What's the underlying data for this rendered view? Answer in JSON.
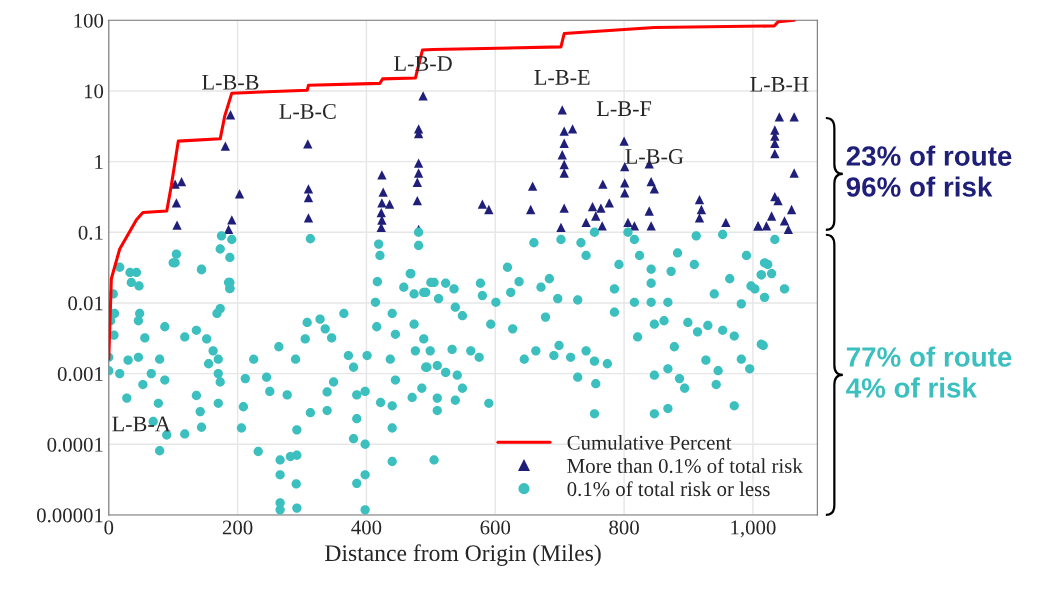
{
  "chart_data": {
    "type": "scatter",
    "xlabel": "Distance from Origin (Miles)",
    "xlim": [
      0,
      1100
    ],
    "xticks": [
      0,
      200,
      400,
      600,
      800,
      {
        "value": 1000,
        "label": "1,000"
      }
    ],
    "ylim": [
      1e-05,
      100
    ],
    "log": "y",
    "yticks": [
      {
        "value": 1e-05,
        "label": "0.00001"
      },
      {
        "value": 0.0001,
        "label": "0.0001"
      },
      {
        "value": 0.001,
        "label": "0.001"
      },
      {
        "value": 0.01,
        "label": "0.01"
      },
      {
        "value": 0.1,
        "label": "0.1"
      },
      {
        "value": 1,
        "label": "1"
      },
      {
        "value": 10,
        "label": "10"
      },
      {
        "value": 100,
        "label": "100"
      }
    ],
    "grid": true,
    "legend": "bottom right",
    "series": [
      {
        "name": "Cumulative Percent",
        "type": "line",
        "color": "#ff0000",
        "marker": "none",
        "line_style": "solid",
        "x": [
          0,
          4,
          17,
          43,
          53,
          90,
          97,
          108,
          173,
          180,
          191,
          308,
          310,
          421,
          425,
          476,
          487,
          503,
          702,
          707,
          847,
          1028,
          1033,
          1039,
          1064
        ],
        "values": [
          0.0016,
          0.022,
          0.058,
          0.15,
          0.19,
          0.2,
          0.45,
          1.95,
          2.1,
          4.4,
          9.3,
          10.2,
          12,
          12.8,
          14.8,
          15.2,
          38,
          38.5,
          42,
          65,
          79,
          83,
          83,
          95,
          100
        ]
      },
      {
        "name": "More than 0.1% of total risk",
        "color": "#1f1f7a",
        "marker": "triangle",
        "x": [
          103,
          113,
          105,
          106,
          181,
          189,
          203,
          191,
          186,
          309,
          310,
          310,
          310,
          424,
          426,
          424,
          436,
          423,
          424,
          423,
          488,
          481,
          481,
          481,
          481,
          479,
          479,
          481,
          580,
          590,
          658,
          655,
          704,
          707,
          720,
          707,
          704,
          707,
          707,
          707,
          702,
          767,
          751,
          777,
          764,
          741,
          756,
          766,
          800,
          801,
          801,
          801,
          806,
          816,
          839,
          842,
          847,
          839,
          842,
          917,
          920,
          917,
          958,
          1008,
          1041,
          1064,
          1034,
          1034,
          1034,
          1034,
          1064,
          1034,
          1039,
          1060,
          1029,
          1008,
          1021,
          1049,
          1055
        ],
        "values": [
          0.48,
          0.52,
          0.26,
          0.126,
          1.66,
          4.6,
          0.35,
          0.15,
          0.11,
          1.78,
          0.41,
          0.31,
          0.16,
          0.65,
          0.37,
          0.26,
          0.25,
          0.19,
          0.149,
          0.117,
          8.5,
          2.9,
          2.5,
          0.95,
          0.69,
          0.51,
          0.28,
          0.11,
          0.25,
          0.21,
          0.45,
          0.21,
          5.4,
          2.7,
          2.9,
          1.82,
          1.25,
          0.91,
          0.69,
          0.22,
          0.117,
          0.48,
          0.23,
          0.26,
          0.22,
          0.138,
          0.17,
          0.123,
          1.95,
          0.85,
          0.5,
          0.36,
          0.138,
          0.123,
          0.93,
          0.52,
          0.41,
          0.2,
          0.123,
          0.29,
          0.21,
          0.16,
          0.138,
          0.123,
          4.3,
          4.3,
          2.8,
          2.3,
          1.82,
          1.3,
          0.69,
          0.32,
          0.28,
          0.21,
          0.17,
          0.123,
          0.123,
          0.145,
          0.11
        ]
      },
      {
        "name": "0.1% of total risk or less",
        "color": "#3cbfbf",
        "marker": "circle",
        "x": [
          3,
          7,
          9,
          8,
          0,
          0,
          17,
          33,
          43,
          35,
          47,
          48,
          46,
          56,
          17,
          30,
          46,
          28,
          53,
          66,
          79,
          87,
          77,
          69,
          90,
          79,
          87,
          103,
          118,
          118,
          136,
          144,
          152,
          162,
          170,
          155,
          170,
          173,
          170,
          136,
          142,
          144,
          168,
          173,
          186,
          188,
          209,
          206,
          212,
          225,
          245,
          250,
          232,
          264,
          277,
          266,
          266,
          282,
          292,
          291,
          266,
          266,
          292,
          292,
          290,
          308,
          305,
          313,
          328,
          336,
          346,
          339,
          339,
          349,
          365,
          372,
          380,
          385,
          385,
          380,
          398,
          401,
          398,
          398,
          385,
          398,
          414,
          417,
          416,
          422,
          440,
          445,
          437,
          445,
          440,
          440,
          440,
          458,
          469,
          474,
          474,
          476,
          486,
          471,
          489,
          500,
          494,
          505,
          505,
          492,
          512,
          523,
          536,
          538,
          549,
          577,
          580,
          593,
          601,
          619,
          624,
          627,
          637,
          671,
          684,
          697,
          678,
          728,
          489,
          499,
          533,
          562,
          575,
          492,
          510,
          523,
          541,
          510,
          510,
          538,
          549,
          590,
          645,
          663,
          691,
          717,
          699,
          741,
          754,
          774,
          728,
          756,
          754,
          785,
          792,
          785,
          816,
          821,
          842,
          842,
          842,
          847,
          868,
          873,
          862,
          878,
          847,
          868,
          886,
          894,
          868,
          847,
          899,
          914,
          930,
          940,
          953,
          971,
          982,
          964,
          997,
          1013,
          1013,
          927,
          946,
          982,
          995,
          971,
          943,
          1018,
          1023,
          1013,
          1029,
          1049,
          1018,
          1003,
          1016,
          175,
          191,
          173,
          188,
          188,
          188,
          105,
          100,
          144,
          313,
          419,
          421,
          481,
          481,
          468,
          660,
          702,
          733,
          741,
          754,
          806,
          816,
          824,
          883,
          912,
          953,
          909,
          990,
          1034
        ],
        "values": [
          0.0056,
          0.0134,
          0.0071,
          0.0035,
          0.0017,
          0.0011,
          0.032,
          0.027,
          0.027,
          0.0195,
          0.0174,
          0.0071,
          0.0056,
          0.0032,
          0.001,
          0.00155,
          0.0017,
          0.00045,
          0.0007,
          0.001,
          0.0016,
          0.00081,
          0.00038,
          0.00021,
          0.000135,
          8.1e-05,
          0.0046,
          0.037,
          0.0033,
          0.00014,
          0.0041,
          0.0295,
          0.0031,
          0.0021,
          0.0016,
          0.00138,
          0.001,
          0.00076,
          0.00038,
          0.00049,
          0.00029,
          0.000174,
          0.0071,
          0.0083,
          0.0195,
          0.016,
          0.00034,
          0.00017,
          0.00085,
          0.0016,
          0.00089,
          0.00056,
          7.9e-05,
          0.0024,
          0.0005,
          6e-05,
          3.7e-05,
          6.7e-05,
          7e-05,
          2.75e-05,
          1.48e-05,
          1.18e-05,
          1.25e-05,
          0.00016,
          0.0016,
          0.0053,
          0.0031,
          0.00028,
          0.0059,
          0.0043,
          0.0032,
          0.00055,
          0.0003,
          0.00076,
          0.0071,
          0.0018,
          0.00123,
          0.0005,
          0.00023,
          0.00012,
          0.00056,
          0.0018,
          0.0001,
          3.7e-05,
          2.8e-05,
          1.18e-05,
          0.0102,
          0.02,
          0.0046,
          0.00039,
          0.0071,
          0.0036,
          0.0016,
          0.00081,
          0.00035,
          0.00017,
          5.7e-05,
          0.0167,
          0.026,
          0.0134,
          0.005,
          0.0021,
          0.00062,
          0.00046,
          0.0141,
          0.0195,
          0.00123,
          6e-05,
          0.0195,
          0.0141,
          0.0115,
          0.019,
          0.0158,
          0.0087,
          0.0066,
          0.019,
          0.0127,
          0.005,
          0.0102,
          0.032,
          0.0141,
          0.0043,
          0.02,
          0.0167,
          0.022,
          0.0115,
          0.0063,
          0.011,
          0.0031,
          0.0021,
          0.0022,
          0.0021,
          0.0017,
          0.00123,
          0.0013,
          0.00104,
          0.00095,
          0.00045,
          0.0003,
          0.00042,
          0.00062,
          0.00038,
          0.0016,
          0.0021,
          0.0018,
          0.0017,
          0.0025,
          0.0021,
          0.0015,
          0.00138,
          0.00089,
          0.00072,
          0.00027,
          0.0158,
          0.035,
          0.0074,
          0.0102,
          0.0033,
          0.03,
          0.019,
          0.0102,
          0.005,
          0.0102,
          0.028,
          0.0056,
          0.0024,
          0.00095,
          0.00117,
          0.00085,
          0.00062,
          0.00032,
          0.00027,
          0.0053,
          0.0039,
          0.0048,
          0.0134,
          0.0041,
          0.0034,
          0.0097,
          0.022,
          0.0174,
          0.025,
          0.0026,
          0.00155,
          0.0011,
          0.0016,
          0.00117,
          0.00035,
          0.0007,
          0.037,
          0.035,
          0.025,
          0.026,
          0.0158,
          0.012,
          0.0158,
          0.0025,
          0.089,
          0.079,
          0.058,
          0.044,
          0.0195,
          0.016,
          0.049,
          0.037,
          0.03,
          0.081,
          0.068,
          0.047,
          0.065,
          0.1,
          0.026,
          0.071,
          0.079,
          0.071,
          0.047,
          0.1,
          0.1,
          0.079,
          0.047,
          0.051,
          0.089,
          0.093,
          0.035,
          0.047,
          0.079
        ]
      }
    ],
    "annotations": [
      "L-B-A",
      {
        "text": "L-B-B",
        "x": 189,
        "y": 4.6
      },
      {
        "text": "L-B-C",
        "x": 309,
        "y": 1.78
      },
      {
        "text": "L-B-D",
        "x": 488,
        "y": 8.5
      },
      {
        "text": "L-B-E",
        "x": 704,
        "y": 5.4
      },
      {
        "text": "L-B-F",
        "x": 800,
        "y": 1.95
      },
      {
        "text": "L-B-G",
        "x": 847,
        "y": 0.41
      },
      {
        "text": "L-B-H",
        "x": 1041,
        "y": 4.3
      },
      "23% of route\n96% of risk",
      "77% of route\n4% of risk"
    ]
  }
}
